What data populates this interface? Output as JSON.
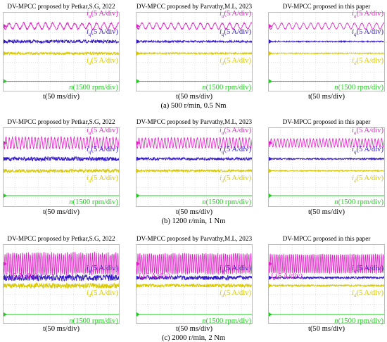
{
  "chart_data": [
    {
      "type": "line",
      "rows": [
        {
          "caption": "(a) 500 r/min, 0.5 Nm",
          "panels": [
            {
              "title": "DV-MPCC proposed by Petkar,S.G, 2022",
              "label_ia": "(5 A/div)",
              "label_iq": "(5 A/div)",
              "label_id": "(5 A/div)",
              "label_n": "(1500 rpm/div)",
              "x_label": "t(50 ms/div)",
              "ia_cycles": 16,
              "ia_amplitude_div": 0.3,
              "ripple": 0.22
            },
            {
              "title": "DV-MPCC proposed by Parvathy,M.L, 2023",
              "label_ia": "(5 A/div)",
              "label_iq": "(5 A/div)",
              "label_id": "(5 A/div)",
              "label_n": "(1500 rpm/div)",
              "x_label": "t(50 ms/div)",
              "ia_cycles": 16,
              "ia_amplitude_div": 0.3,
              "ripple": 0.14
            },
            {
              "title": "DV-MPCC proposed in this paper",
              "label_ia": "(5 A/div)",
              "label_iq": "(5 A/div)",
              "label_id": "(5 A/div)",
              "label_n": "(1500 rpm/div)",
              "x_label": "t(50 ms/div)",
              "ia_cycles": 16,
              "ia_amplitude_div": 0.3,
              "ripple": 0.08
            }
          ]
        },
        {
          "caption": "(b) 1200 r/min, 1 Nm",
          "panels": [
            {
              "title": "DV-MPCC proposed by Petkar,S.G, 2022",
              "label_ia": "(5 A/div)",
              "label_iq": "(5 A/div)",
              "label_id": "(5 A/div)",
              "label_n": "(1500 rpm/div)",
              "x_label": "t(50 ms/div)",
              "ia_cycles": 36,
              "ia_amplitude_div": 0.55,
              "ripple": 0.3
            },
            {
              "title": "DV-MPCC proposed by Parvathy,M.L, 2023",
              "label_ia": "(5 A/div)",
              "label_iq": "(5 A/div)",
              "label_id": "(5 A/div)",
              "label_n": "(1500 rpm/div)",
              "x_label": "t(50 ms/div)",
              "ia_cycles": 36,
              "ia_amplitude_div": 0.5,
              "ripple": 0.2
            },
            {
              "title": "DV-MPCC proposed in this paper",
              "label_ia": "(5 A/div)",
              "label_iq": "(5 A/div)",
              "label_id": "(5 A/div)",
              "label_n": "(1500 rpm/div)",
              "x_label": "t(50 ms/div)",
              "ia_cycles": 36,
              "ia_amplitude_div": 0.42,
              "ripple": 0.1
            }
          ]
        },
        {
          "caption": "(c) 2000 r/min, 2 Nm",
          "panels": [
            {
              "title": "DV-MPCC proposed by Petkar,S.G, 2022",
              "label_ia": "(5 A/div)",
              "label_iq": "(5 A/div)",
              "label_id": "(5 A/div)",
              "label_n": "(1500 rpm/div)",
              "x_label": "t(50 ms/div)",
              "ia_cycles": 60,
              "ia_amplitude_div": 1.05,
              "ripple": 0.45
            },
            {
              "title": "DV-MPCC proposed by Parvathy,M.L, 2023",
              "label_ia": "(5 A/div)",
              "label_iq": "(5 A/div)",
              "label_id": "(5 A/div)",
              "label_n": "(1500 rpm/div)",
              "x_label": "t(50 ms/div)",
              "ia_cycles": 60,
              "ia_amplitude_div": 1.0,
              "ripple": 0.3
            },
            {
              "title": "DV-MPCC proposed in this paper",
              "label_ia": "(5 A/div)",
              "label_iq": "(5 A/div)",
              "label_id": "(5 A/div)",
              "label_n": "(1500 rpm/div)",
              "x_label": "t(50 ms/div)",
              "ia_cycles": 60,
              "ia_amplitude_div": 0.95,
              "ripple": 0.15
            }
          ]
        }
      ],
      "x_divisions": 10,
      "y_divisions": 8,
      "grid": true,
      "colors": {
        "ia": "#e020c8",
        "iq": "#3318c8",
        "id": "#d8c800",
        "n": "#22cc22",
        "grid": "#c8c8c8",
        "frame": "#bdbdbd"
      }
    }
  ]
}
